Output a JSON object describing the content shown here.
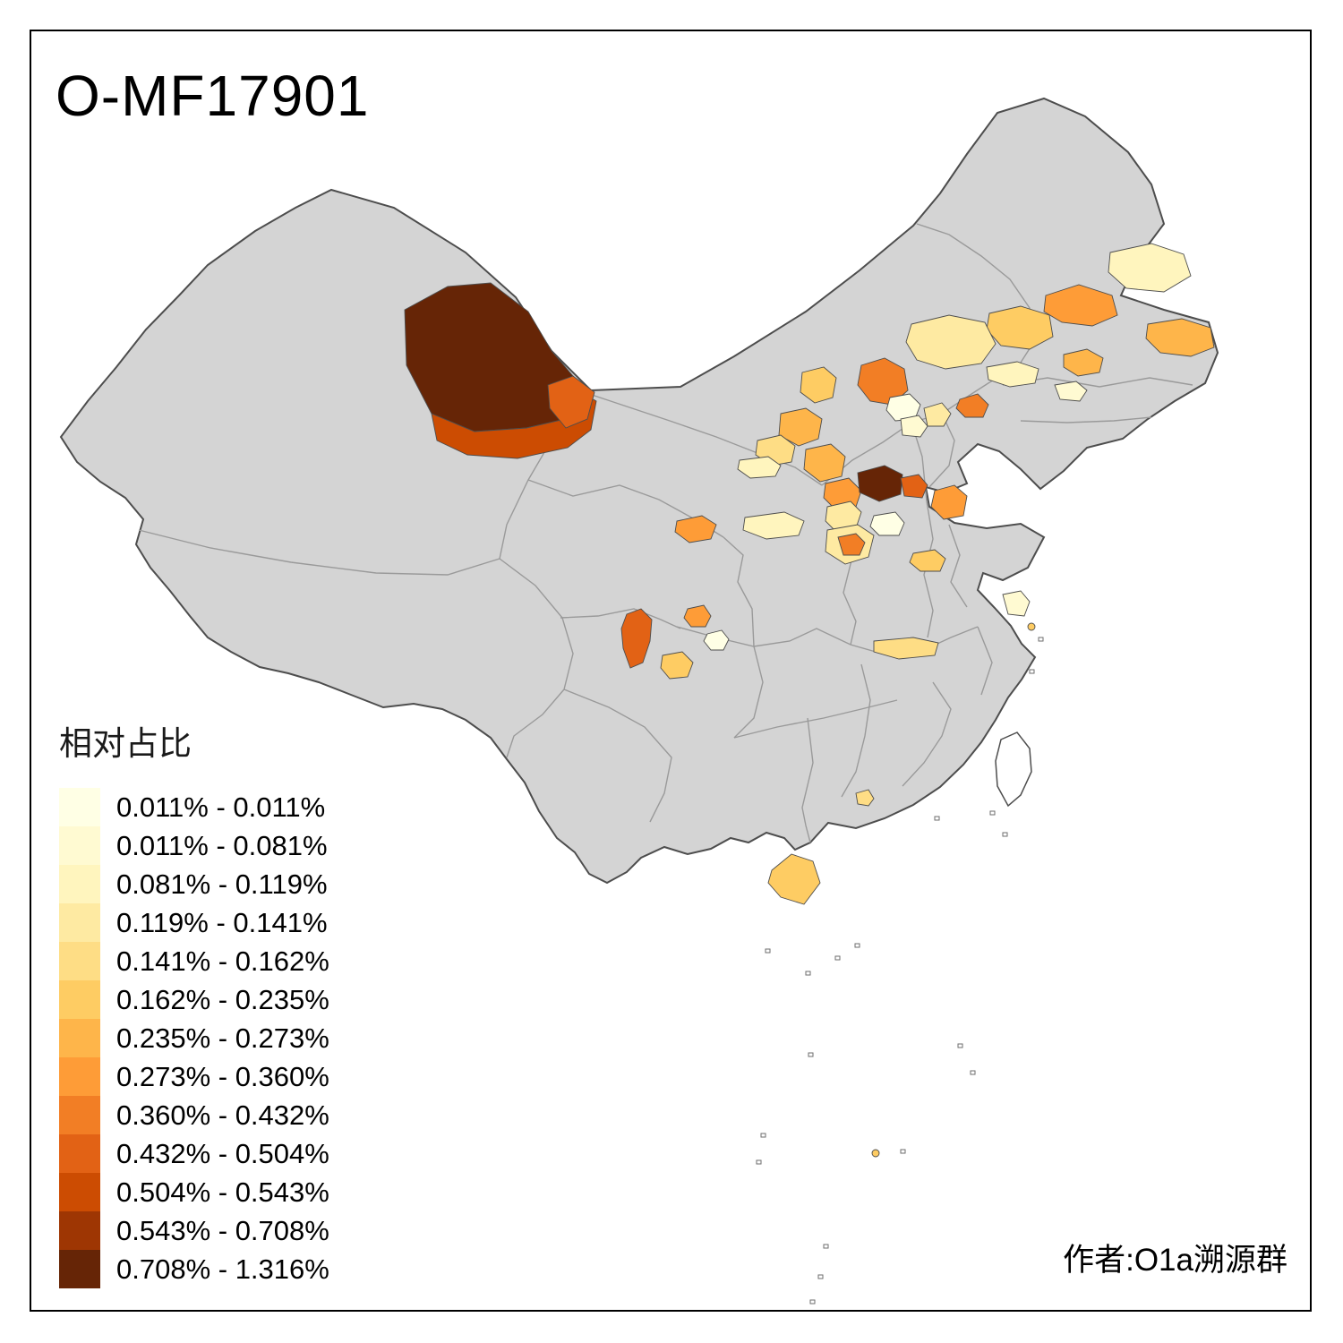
{
  "title": "O-MF17901",
  "attribution": "作者:O1a溯源群",
  "legend": {
    "title": "相对占比",
    "items": [
      {
        "label": "0.011% - 0.011%",
        "color": "#FFFFE5"
      },
      {
        "label": "0.011% - 0.081%",
        "color": "#FFFAD2"
      },
      {
        "label": "0.081% - 0.119%",
        "color": "#FFF5BE"
      },
      {
        "label": "0.119% - 0.141%",
        "color": "#FEEAA2"
      },
      {
        "label": "0.141% - 0.162%",
        "color": "#FEDD85"
      },
      {
        "label": "0.162% - 0.235%",
        "color": "#FECC63"
      },
      {
        "label": "0.235% - 0.273%",
        "color": "#FEB54A"
      },
      {
        "label": "0.273% - 0.360%",
        "color": "#FE9C37"
      },
      {
        "label": "0.360% - 0.432%",
        "color": "#F27E25"
      },
      {
        "label": "0.432% - 0.504%",
        "color": "#E26215"
      },
      {
        "label": "0.504% - 0.543%",
        "color": "#CC4C02"
      },
      {
        "label": "0.543% - 0.708%",
        "color": "#9E3603"
      },
      {
        "label": "0.708% - 1.316%",
        "color": "#662506"
      }
    ]
  },
  "map": {
    "land_color": "#d4d4d4",
    "outer_boundary_color": "#4d4d4d",
    "inner_boundary_color": "#9a9a9a",
    "no_data_color": "#ffffff"
  }
}
